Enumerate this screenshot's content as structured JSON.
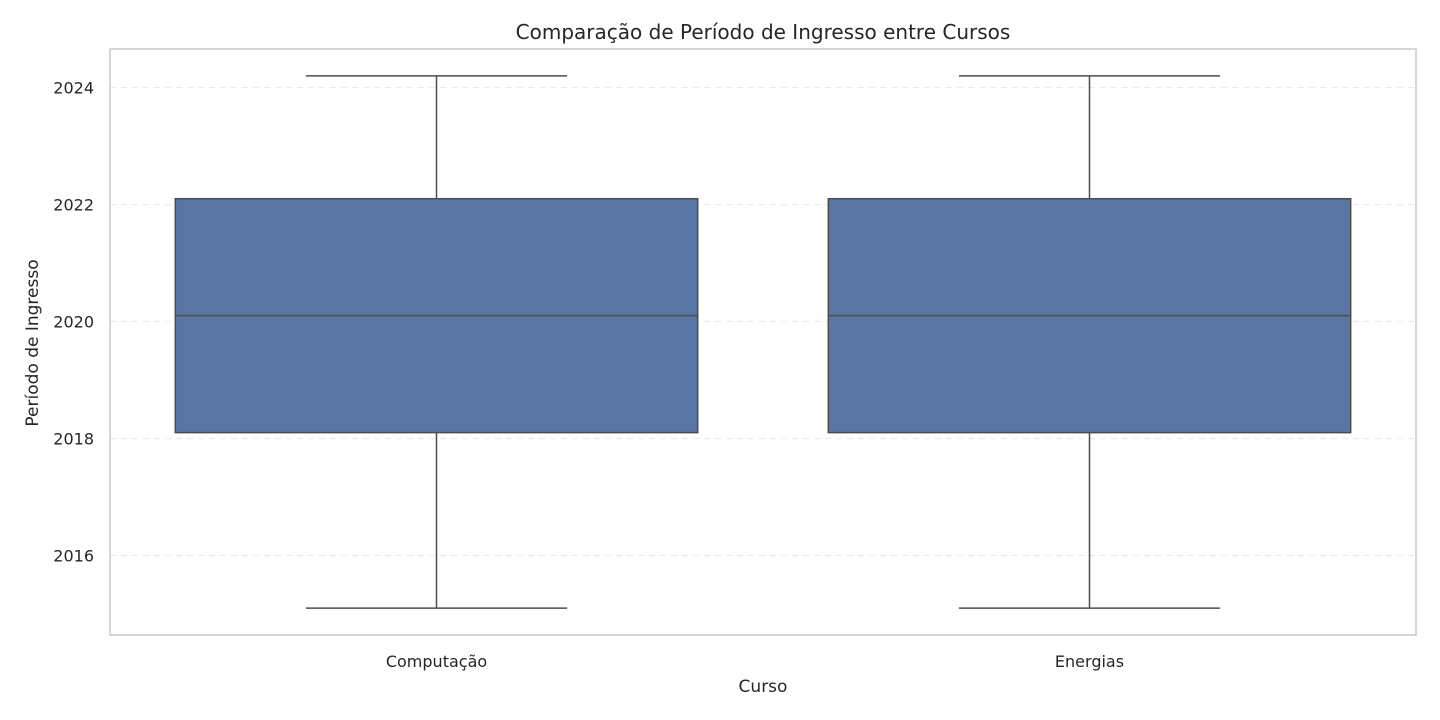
{
  "chart_data": {
    "type": "box",
    "title": "Comparação de Período de Ingresso entre Cursos",
    "xlabel": "Curso",
    "ylabel": "Período de Ingresso",
    "categories": [
      "Computação",
      "Energias"
    ],
    "boxes": [
      {
        "category": "Computação",
        "whisker_low": 2015.1,
        "q1": 2018.1,
        "median": 2020.1,
        "q3": 2022.1,
        "whisker_high": 2024.2
      },
      {
        "category": "Energias",
        "whisker_low": 2015.1,
        "q1": 2018.1,
        "median": 2020.1,
        "q3": 2022.1,
        "whisker_high": 2024.2
      }
    ],
    "y_ticks": [
      2016,
      2018,
      2020,
      2022,
      2024
    ],
    "ylim": [
      2014.64,
      2024.66
    ],
    "grid": true,
    "box_color": "#5875a4",
    "line_color": "#4d4d4d"
  }
}
